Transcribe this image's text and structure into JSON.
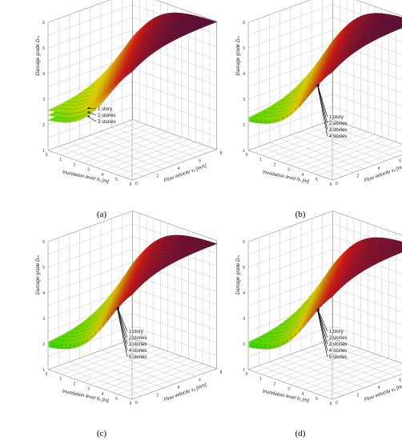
{
  "figure": {
    "panels": [
      {
        "caption": "(a)",
        "annotations": [
          "1 story",
          "2 stories",
          "3 stories"
        ]
      },
      {
        "caption": "(b)",
        "annotations": [
          "1 story",
          "2 stories",
          "3 stories",
          "4 stories"
        ]
      },
      {
        "caption": "(c)",
        "annotations": [
          "1 story",
          "2 stories",
          "3 stories",
          "4 stories",
          "5 stories"
        ]
      },
      {
        "caption": "(d)",
        "annotations": [
          "1 story",
          "2 stories",
          "3 stories",
          "4 stories",
          "5 stories"
        ]
      }
    ],
    "colors": {
      "low": "#22dd00",
      "mid": "#f0e000",
      "high": "#e01818",
      "top": "#5a0f3a",
      "grid": "#c8c8c8",
      "mesh": "#3a2a10"
    }
  },
  "chart_data": [
    {
      "type": "surface",
      "xlabel": "Inundation level hᵤ [m]",
      "ylabel": "Flow velocity vᵤ [m/s]",
      "zlabel": "Damage grade Dₘ",
      "x_ticks": [
        "0",
        "1",
        "2",
        "3",
        "4",
        "5",
        "6"
      ],
      "y_ticks": [
        "0",
        "2",
        "4",
        "6",
        "8"
      ],
      "z_ticks": [
        "1",
        "2",
        "3",
        "4",
        "5",
        "6"
      ],
      "xlim": [
        0,
        6
      ],
      "ylim": [
        0,
        8
      ],
      "zlim": [
        1,
        6
      ],
      "series": [
        {
          "name": "1 story",
          "z_at_h0_v0": 2.5,
          "z_max": 6.0
        },
        {
          "name": "2 stories",
          "z_at_h0_v0": 2.3,
          "z_max": 6.0
        },
        {
          "name": "3 stories",
          "z_at_h0_v0": 2.1,
          "z_max": 6.0
        }
      ]
    },
    {
      "type": "surface",
      "xlabel": "Inundation level hᵤ [m]",
      "ylabel": "Flow velocity vᵤ [m/s]",
      "zlabel": "Damage grade Dₘ",
      "x_ticks": [
        "0",
        "1",
        "2",
        "3",
        "4",
        "5",
        "6"
      ],
      "y_ticks": [
        "0",
        "2",
        "4",
        "6",
        "8"
      ],
      "z_ticks": [
        "1",
        "2",
        "3",
        "4",
        "5",
        "6"
      ],
      "xlim": [
        0,
        6
      ],
      "ylim": [
        0,
        8
      ],
      "zlim": [
        1,
        6
      ],
      "series": [
        {
          "name": "1 story",
          "z_at_h0_v0": 2.2,
          "z_max": 6.0
        },
        {
          "name": "2 stories",
          "z_at_h0_v0": 2.15,
          "z_max": 6.0
        },
        {
          "name": "3 stories",
          "z_at_h0_v0": 2.1,
          "z_max": 6.0
        },
        {
          "name": "4 stories",
          "z_at_h0_v0": 2.05,
          "z_max": 6.0
        }
      ]
    },
    {
      "type": "surface",
      "xlabel": "Inundation level hᵤ [m]",
      "ylabel": "Flow velocity vᵤ [m/s]",
      "zlabel": "Damage grade Dₘ",
      "x_ticks": [
        "0",
        "1",
        "2",
        "3",
        "4",
        "5",
        "6"
      ],
      "y_ticks": [
        "0",
        "2",
        "4",
        "6",
        "8"
      ],
      "z_ticks": [
        "1",
        "2",
        "3",
        "4",
        "5",
        "6"
      ],
      "xlim": [
        0,
        6
      ],
      "ylim": [
        0,
        8
      ],
      "zlim": [
        1,
        6
      ],
      "series": [
        {
          "name": "1 story",
          "z_at_h0_v0": 2.0,
          "z_max": 5.9
        },
        {
          "name": "2 stories",
          "z_at_h0_v0": 1.95,
          "z_max": 5.9
        },
        {
          "name": "3 stories",
          "z_at_h0_v0": 1.9,
          "z_max": 5.9
        },
        {
          "name": "4 stories",
          "z_at_h0_v0": 1.85,
          "z_max": 5.9
        },
        {
          "name": "5 stories",
          "z_at_h0_v0": 1.8,
          "z_max": 5.9
        }
      ]
    },
    {
      "type": "surface",
      "xlabel": "Inundation level hᵤ [m]",
      "ylabel": "Flow velocity vᵤ [m/s]",
      "zlabel": "Damage grade Dₘ",
      "x_ticks": [
        "0",
        "1",
        "2",
        "3",
        "4",
        "5",
        "6"
      ],
      "y_ticks": [
        "0",
        "2",
        "4",
        "6",
        "8"
      ],
      "z_ticks": [
        "1",
        "2",
        "3",
        "4",
        "5",
        "6"
      ],
      "xlim": [
        0,
        6
      ],
      "ylim": [
        0,
        8
      ],
      "zlim": [
        1,
        6
      ],
      "series": [
        {
          "name": "1 story",
          "z_at_h0_v0": 2.0,
          "z_max": 5.8
        },
        {
          "name": "2 stories",
          "z_at_h0_v0": 1.95,
          "z_max": 5.8
        },
        {
          "name": "3 stories",
          "z_at_h0_v0": 1.9,
          "z_max": 5.8
        },
        {
          "name": "4 stories",
          "z_at_h0_v0": 1.85,
          "z_max": 5.8
        },
        {
          "name": "5 stories",
          "z_at_h0_v0": 1.8,
          "z_max": 5.8
        }
      ]
    }
  ]
}
